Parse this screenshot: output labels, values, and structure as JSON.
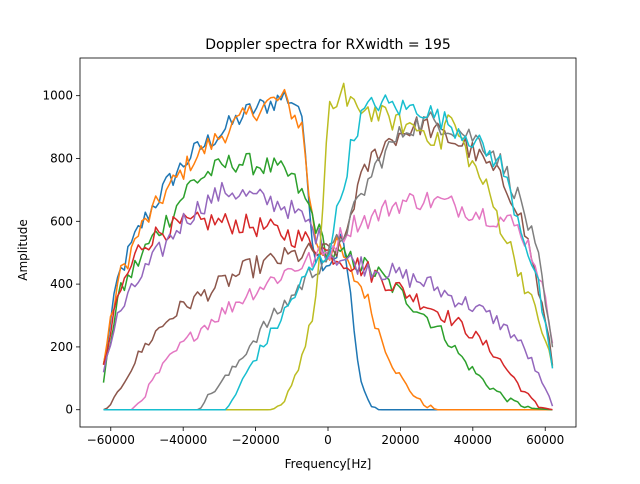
{
  "chart_data": {
    "type": "line",
    "title": "Doppler spectra for RXwidth = 195",
    "xlabel": "Frequency[Hz]",
    "ylabel": "Amplitude",
    "xlim": [
      -68500,
      68500
    ],
    "ylim": [
      -55,
      1120
    ],
    "x_ticks": [
      -60000,
      -40000,
      -20000,
      0,
      20000,
      40000,
      60000
    ],
    "x_tick_labels": [
      "−60000",
      "−40000",
      "−20000",
      "0",
      "20000",
      "40000",
      "60000"
    ],
    "y_ticks": [
      0,
      200,
      400,
      600,
      800,
      1000
    ],
    "y_tick_labels": [
      "0",
      "200",
      "400",
      "600",
      "800",
      "1000"
    ],
    "grid": false,
    "legend": "none",
    "x_range": [
      -62000,
      62000
    ],
    "series": [
      {
        "color": "#1f77b4",
        "points": [
          [
            -62000,
            140
          ],
          [
            -58000,
            420
          ],
          [
            -52000,
            580
          ],
          [
            -45000,
            710
          ],
          [
            -38000,
            810
          ],
          [
            -30000,
            880
          ],
          [
            -22000,
            950
          ],
          [
            -16000,
            975
          ],
          [
            -12000,
            1000
          ],
          [
            -8000,
            970
          ],
          [
            -6000,
            800
          ],
          [
            -4000,
            500
          ],
          [
            -2000,
            480
          ],
          [
            0,
            470
          ],
          [
            2000,
            490
          ],
          [
            4000,
            560
          ],
          [
            6000,
            380
          ],
          [
            8000,
            160
          ],
          [
            10000,
            60
          ],
          [
            12000,
            10
          ],
          [
            14000,
            0
          ],
          [
            62000,
            0
          ]
        ]
      },
      {
        "color": "#ff7f0e",
        "points": [
          [
            -62000,
            150
          ],
          [
            -58000,
            410
          ],
          [
            -52000,
            570
          ],
          [
            -45000,
            690
          ],
          [
            -38000,
            790
          ],
          [
            -30000,
            870
          ],
          [
            -22000,
            940
          ],
          [
            -16000,
            980
          ],
          [
            -12000,
            990
          ],
          [
            -9000,
            930
          ],
          [
            -7000,
            900
          ],
          [
            -5000,
            660
          ],
          [
            -3000,
            520
          ],
          [
            0,
            500
          ],
          [
            3000,
            520
          ],
          [
            6000,
            440
          ],
          [
            10000,
            380
          ],
          [
            14000,
            250
          ],
          [
            18000,
            140
          ],
          [
            22000,
            70
          ],
          [
            26000,
            20
          ],
          [
            30000,
            0
          ],
          [
            62000,
            0
          ]
        ]
      },
      {
        "color": "#2ca02c",
        "points": [
          [
            -62000,
            90
          ],
          [
            -58000,
            360
          ],
          [
            -50000,
            520
          ],
          [
            -44000,
            610
          ],
          [
            -38000,
            720
          ],
          [
            -32000,
            760
          ],
          [
            -26000,
            790
          ],
          [
            -20000,
            780
          ],
          [
            -15000,
            770
          ],
          [
            -10000,
            740
          ],
          [
            -5000,
            640
          ],
          [
            -2000,
            550
          ],
          [
            0,
            500
          ],
          [
            3000,
            490
          ],
          [
            8000,
            470
          ],
          [
            14000,
            430
          ],
          [
            20000,
            370
          ],
          [
            26000,
            310
          ],
          [
            32000,
            240
          ],
          [
            38000,
            150
          ],
          [
            44000,
            80
          ],
          [
            50000,
            30
          ],
          [
            56000,
            5
          ],
          [
            62000,
            0
          ]
        ]
      },
      {
        "color": "#d62728",
        "points": [
          [
            -62000,
            130
          ],
          [
            -58000,
            360
          ],
          [
            -52000,
            520
          ],
          [
            -46000,
            570
          ],
          [
            -40000,
            590
          ],
          [
            -32000,
            600
          ],
          [
            -24000,
            590
          ],
          [
            -18000,
            580
          ],
          [
            -12000,
            560
          ],
          [
            -6000,
            540
          ],
          [
            0,
            500
          ],
          [
            4000,
            480
          ],
          [
            10000,
            450
          ],
          [
            16000,
            410
          ],
          [
            22000,
            370
          ],
          [
            28000,
            330
          ],
          [
            34000,
            290
          ],
          [
            40000,
            240
          ],
          [
            46000,
            180
          ],
          [
            50000,
            120
          ],
          [
            54000,
            60
          ],
          [
            58000,
            10
          ],
          [
            62000,
            0
          ]
        ]
      },
      {
        "color": "#9467bd",
        "points": [
          [
            -62000,
            130
          ],
          [
            -58000,
            300
          ],
          [
            -52000,
            420
          ],
          [
            -46000,
            510
          ],
          [
            -40000,
            600
          ],
          [
            -34000,
            660
          ],
          [
            -28000,
            700
          ],
          [
            -22000,
            680
          ],
          [
            -18000,
            670
          ],
          [
            -12000,
            650
          ],
          [
            -6000,
            600
          ],
          [
            -2000,
            540
          ],
          [
            0,
            500
          ],
          [
            4000,
            480
          ],
          [
            10000,
            460
          ],
          [
            16000,
            440
          ],
          [
            22000,
            420
          ],
          [
            28000,
            400
          ],
          [
            34000,
            360
          ],
          [
            40000,
            330
          ],
          [
            46000,
            290
          ],
          [
            52000,
            230
          ],
          [
            56000,
            160
          ],
          [
            60000,
            60
          ],
          [
            62000,
            20
          ]
        ]
      },
      {
        "color": "#8c564b",
        "points": [
          [
            -62000,
            0
          ],
          [
            -60000,
            10
          ],
          [
            -56000,
            100
          ],
          [
            -52000,
            180
          ],
          [
            -48000,
            240
          ],
          [
            -44000,
            290
          ],
          [
            -40000,
            330
          ],
          [
            -34000,
            370
          ],
          [
            -28000,
            410
          ],
          [
            -22000,
            450
          ],
          [
            -16000,
            470
          ],
          [
            -10000,
            490
          ],
          [
            -4000,
            500
          ],
          [
            0,
            500
          ],
          [
            4000,
            520
          ],
          [
            8000,
            700
          ],
          [
            12000,
            800
          ],
          [
            16000,
            850
          ],
          [
            20000,
            880
          ],
          [
            26000,
            910
          ],
          [
            32000,
            870
          ],
          [
            38000,
            840
          ],
          [
            44000,
            780
          ],
          [
            48000,
            730
          ],
          [
            52000,
            660
          ],
          [
            56000,
            500
          ],
          [
            60000,
            280
          ],
          [
            62000,
            150
          ]
        ]
      },
      {
        "color": "#e377c2",
        "points": [
          [
            -62000,
            0
          ],
          [
            -58000,
            0
          ],
          [
            -54000,
            0
          ],
          [
            -51000,
            40
          ],
          [
            -48000,
            100
          ],
          [
            -44000,
            160
          ],
          [
            -40000,
            210
          ],
          [
            -34000,
            270
          ],
          [
            -28000,
            320
          ],
          [
            -22000,
            370
          ],
          [
            -16000,
            410
          ],
          [
            -10000,
            450
          ],
          [
            -4000,
            480
          ],
          [
            0,
            500
          ],
          [
            4000,
            560
          ],
          [
            8000,
            600
          ],
          [
            12000,
            610
          ],
          [
            16000,
            640
          ],
          [
            20000,
            660
          ],
          [
            26000,
            670
          ],
          [
            32000,
            660
          ],
          [
            38000,
            640
          ],
          [
            44000,
            620
          ],
          [
            50000,
            600
          ],
          [
            54000,
            560
          ],
          [
            58000,
            450
          ],
          [
            62000,
            230
          ]
        ]
      },
      {
        "color": "#7f7f7f",
        "points": [
          [
            -62000,
            0
          ],
          [
            -40000,
            0
          ],
          [
            -36000,
            0
          ],
          [
            -34000,
            30
          ],
          [
            -30000,
            80
          ],
          [
            -26000,
            130
          ],
          [
            -22000,
            200
          ],
          [
            -18000,
            260
          ],
          [
            -14000,
            310
          ],
          [
            -10000,
            360
          ],
          [
            -6000,
            420
          ],
          [
            -2000,
            470
          ],
          [
            0,
            490
          ],
          [
            2000,
            520
          ],
          [
            6000,
            600
          ],
          [
            10000,
            700
          ],
          [
            14000,
            790
          ],
          [
            18000,
            850
          ],
          [
            22000,
            900
          ],
          [
            28000,
            920
          ],
          [
            34000,
            900
          ],
          [
            40000,
            870
          ],
          [
            46000,
            820
          ],
          [
            50000,
            740
          ],
          [
            54000,
            640
          ],
          [
            58000,
            480
          ],
          [
            62000,
            190
          ]
        ]
      },
      {
        "color": "#bcbd22",
        "points": [
          [
            -62000,
            0
          ],
          [
            -16000,
            0
          ],
          [
            -13000,
            10
          ],
          [
            -11000,
            60
          ],
          [
            -9000,
            110
          ],
          [
            -7000,
            180
          ],
          [
            -5000,
            260
          ],
          [
            -3000,
            380
          ],
          [
            -1000,
            700
          ],
          [
            0,
            930
          ],
          [
            1000,
            980
          ],
          [
            2000,
            960
          ],
          [
            3000,
            980
          ],
          [
            4000,
            1065
          ],
          [
            5000,
            960
          ],
          [
            8000,
            970
          ],
          [
            12000,
            950
          ],
          [
            16000,
            930
          ],
          [
            20000,
            910
          ],
          [
            24000,
            900
          ],
          [
            28000,
            880
          ],
          [
            31000,
            840
          ],
          [
            33000,
            940
          ],
          [
            35000,
            900
          ],
          [
            37000,
            850
          ],
          [
            40000,
            780
          ],
          [
            44000,
            700
          ],
          [
            48000,
            580
          ],
          [
            52000,
            470
          ],
          [
            56000,
            350
          ],
          [
            60000,
            230
          ],
          [
            62000,
            130
          ]
        ]
      },
      {
        "color": "#17becf",
        "points": [
          [
            -62000,
            0
          ],
          [
            -46000,
            0
          ],
          [
            -30000,
            0
          ],
          [
            -28000,
            0
          ],
          [
            -25000,
            60
          ],
          [
            -21000,
            150
          ],
          [
            -17000,
            220
          ],
          [
            -13000,
            290
          ],
          [
            -9000,
            370
          ],
          [
            -5000,
            440
          ],
          [
            -2000,
            480
          ],
          [
            0,
            500
          ],
          [
            2000,
            600
          ],
          [
            4000,
            700
          ],
          [
            6000,
            820
          ],
          [
            8000,
            900
          ],
          [
            10000,
            950
          ],
          [
            14000,
            980
          ],
          [
            20000,
            960
          ],
          [
            26000,
            960
          ],
          [
            32000,
            920
          ],
          [
            38000,
            880
          ],
          [
            44000,
            820
          ],
          [
            48000,
            780
          ],
          [
            50000,
            700
          ],
          [
            54000,
            560
          ],
          [
            58000,
            400
          ],
          [
            62000,
            120
          ]
        ]
      }
    ]
  }
}
